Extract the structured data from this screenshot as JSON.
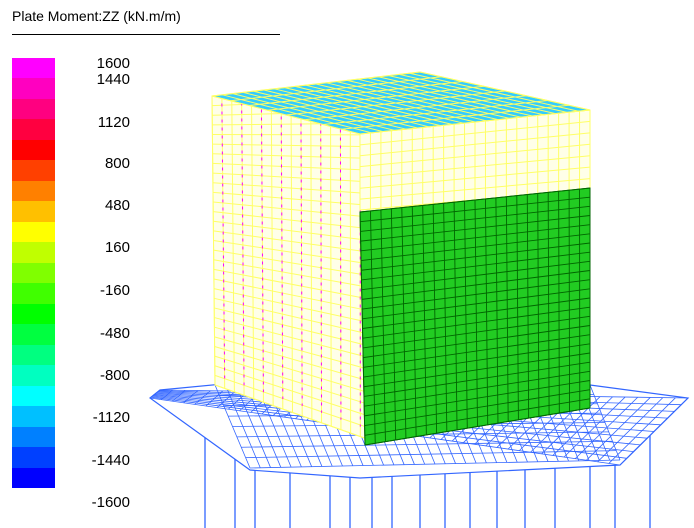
{
  "title": "Plate Moment:ZZ (kN.m/m)",
  "legend": {
    "colors": [
      "#ff00ff",
      "#ff00c0",
      "#ff0080",
      "#ff0040",
      "#ff0000",
      "#ff4000",
      "#ff8000",
      "#ffc000",
      "#ffff00",
      "#c0ff00",
      "#80ff00",
      "#40ff00",
      "#00ff00",
      "#00ff40",
      "#00ff80",
      "#00ffc0",
      "#00ffff",
      "#00c0ff",
      "#0080ff",
      "#0040ff",
      "#0000ff"
    ],
    "ticks": [
      "1600",
      "1440",
      "1120",
      "800",
      "480",
      "160",
      "-160",
      "-480",
      "-800",
      "-1120",
      "-1440",
      "-1600"
    ]
  },
  "colors": {
    "top_face": "#33ccff",
    "top_mesh": "#ffff66",
    "left_mesh": "#ffff66",
    "left_accent": "#ff00ff",
    "right_face": "#22cc22",
    "right_mesh": "#006600",
    "base_mesh": "#3366ff",
    "piles": "#3366ff"
  }
}
